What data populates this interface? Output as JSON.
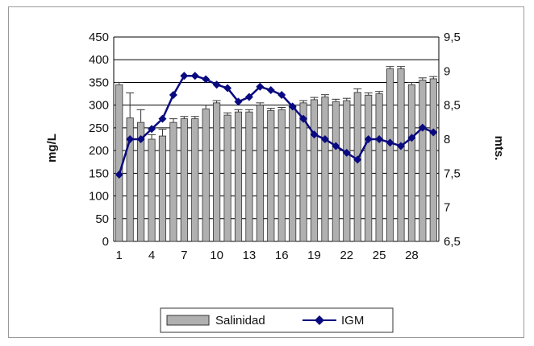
{
  "chart_data": {
    "type": "bar+line",
    "categories": [
      1,
      2,
      3,
      4,
      5,
      6,
      7,
      8,
      9,
      10,
      11,
      12,
      13,
      14,
      15,
      16,
      17,
      18,
      19,
      20,
      21,
      22,
      23,
      24,
      25,
      26,
      27,
      28,
      29,
      30
    ],
    "x_tick_labels": [
      "1",
      "4",
      "7",
      "10",
      "13",
      "16",
      "19",
      "22",
      "25",
      "28"
    ],
    "ylabel": "mg/L",
    "y2label": "mts.",
    "ylim": [
      0,
      450
    ],
    "y2lim": [
      6.5,
      9.5
    ],
    "y_tick_labels": [
      "0",
      "50",
      "100",
      "150",
      "200",
      "250",
      "300",
      "350",
      "400",
      "450"
    ],
    "y2_tick_labels": [
      "6,5",
      "7",
      "7,5",
      "8",
      "8,5",
      "9",
      "9,5"
    ],
    "grid": true,
    "legend_position": "bottom",
    "series": [
      {
        "name": "Salinidad",
        "type": "bar",
        "axis": "left",
        "color": "#b0b0b0",
        "values": [
          345,
          272,
          262,
          225,
          232,
          262,
          270,
          270,
          292,
          305,
          278,
          285,
          285,
          300,
          288,
          290,
          295,
          305,
          312,
          318,
          308,
          310,
          328,
          322,
          325,
          380,
          380,
          345,
          355,
          358
        ],
        "errors": [
          5,
          55,
          28,
          10,
          15,
          8,
          5,
          5,
          8,
          5,
          5,
          5,
          5,
          5,
          5,
          5,
          5,
          5,
          5,
          5,
          5,
          5,
          8,
          5,
          5,
          5,
          5,
          5,
          5,
          5
        ]
      },
      {
        "name": "IGM",
        "type": "line",
        "axis": "right",
        "color": "#0a0a80",
        "values": [
          7.48,
          8.0,
          8.0,
          8.15,
          8.3,
          8.65,
          8.93,
          8.93,
          8.88,
          8.8,
          8.75,
          8.55,
          8.62,
          8.77,
          8.72,
          8.65,
          8.48,
          8.3,
          8.07,
          8.0,
          7.9,
          7.8,
          7.7,
          8.0,
          8.0,
          7.95,
          7.9,
          8.02,
          8.17,
          8.1
        ]
      }
    ]
  }
}
